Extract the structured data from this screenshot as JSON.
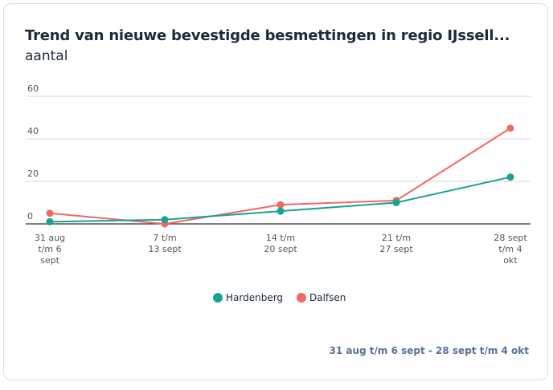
{
  "header": {
    "title": "Trend van nieuwe bevestigde besmettingen in regio IJssell...",
    "subtitle": "aantal"
  },
  "footer": {
    "range_label": "31 aug t/m 6 sept - 28 sept t/m 4 okt"
  },
  "colors": {
    "hardenberg": "#16a394",
    "dalfsen": "#ef6a63",
    "grid": "#d6dadd",
    "axis": "#333333",
    "text": "#1c2b3a"
  },
  "chart_data": {
    "type": "line",
    "title": "Trend van nieuwe bevestigde besmettingen in regio IJssell...",
    "ylabel": "aantal",
    "ylim": [
      0,
      60
    ],
    "yticks": [
      0,
      20,
      40,
      60
    ],
    "categories": [
      [
        "31 aug",
        "t/m 6",
        "sept"
      ],
      [
        "7 t/m",
        "13 sept"
      ],
      [
        "14 t/m",
        "20 sept"
      ],
      [
        "21 t/m",
        "27 sept"
      ],
      [
        "28 sept",
        "t/m 4",
        "okt"
      ]
    ],
    "series": [
      {
        "name": "Hardenberg",
        "color": "#16a394",
        "values": [
          1,
          2,
          6,
          10,
          22
        ]
      },
      {
        "name": "Dalfsen",
        "color": "#ef6a63",
        "values": [
          5,
          0,
          9,
          11,
          45
        ]
      }
    ],
    "grid": true,
    "legend": "bottom-center"
  }
}
